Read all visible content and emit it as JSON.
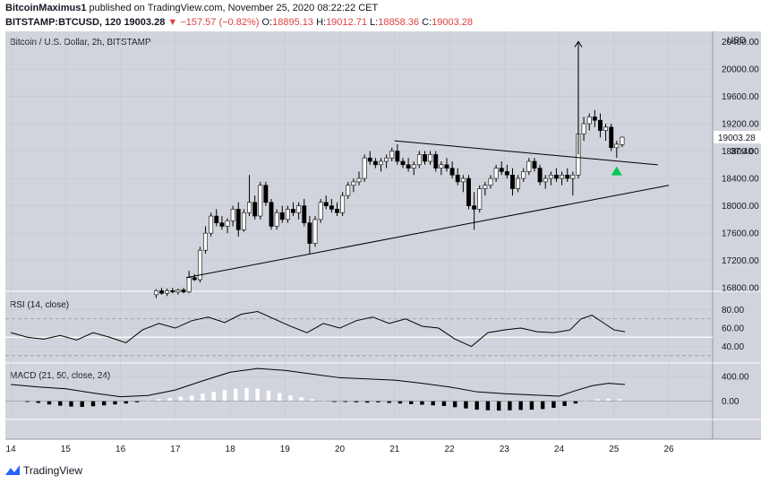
{
  "header": {
    "author": "BitcoinMaximus1",
    "published_text": "published on TradingView.com, November 25, 2020 08:22:22 CET",
    "symbol": "BITSTAMP:BTCUSD, 120",
    "last": "19003.28",
    "change": "−157.57 (−0.82%)",
    "o_label": "O:",
    "o": "18895.13",
    "h_label": "H:",
    "h": "19012.71",
    "l_label": "L:",
    "l": "18858.36",
    "c_label": "C:",
    "c": "19003.28"
  },
  "chart_title": "Bitcoin / U.S. Dollar, 2h, BITSTAMP",
  "currency": "USD",
  "price_tag": "19003.28",
  "countdown": "37:40",
  "rsi_label": "RSI (14, close)",
  "macd_label": "MACD (21, 50, close, 24)",
  "footer_brand": "TradingView",
  "colors": {
    "panel_bg": "#d1d4dc",
    "up": "#ffffff",
    "down": "#000000",
    "marker": "#00c853"
  },
  "chart_data": [
    {
      "type": "candlestick",
      "title": "Bitcoin / U.S. Dollar, 2h, BITSTAMP",
      "x_ticks": [
        "14",
        "15",
        "16",
        "17",
        "18",
        "19",
        "20",
        "21",
        "22",
        "23",
        "24",
        "25",
        "26"
      ],
      "y_ticks": [
        16800,
        17200,
        17600,
        18000,
        18400,
        18800,
        19200,
        19600,
        20000,
        20400
      ],
      "ylim": [
        16750,
        20550
      ],
      "xlim": [
        13.9,
        26.8
      ],
      "candles": [
        [
          16.65,
          16700,
          16780,
          16650,
          16760
        ],
        [
          16.75,
          16760,
          16800,
          16700,
          16720
        ],
        [
          16.85,
          16720,
          16790,
          16680,
          16760
        ],
        [
          16.95,
          16760,
          16800,
          16720,
          16740
        ],
        [
          17.05,
          16740,
          16790,
          16700,
          16770
        ],
        [
          17.15,
          16770,
          16800,
          16720,
          16740
        ],
        [
          17.25,
          16740,
          17050,
          16720,
          16950
        ],
        [
          17.35,
          16950,
          17000,
          16900,
          16920
        ],
        [
          17.45,
          16920,
          17400,
          16880,
          17350
        ],
        [
          17.55,
          17350,
          17700,
          17300,
          17600
        ],
        [
          17.65,
          17600,
          17900,
          17550,
          17850
        ],
        [
          17.75,
          17850,
          17950,
          17700,
          17750
        ],
        [
          17.85,
          17750,
          17850,
          17650,
          17700
        ],
        [
          17.95,
          17700,
          17820,
          17600,
          17780
        ],
        [
          18.05,
          17780,
          18000,
          17700,
          17950
        ],
        [
          18.15,
          17950,
          18050,
          17550,
          17650
        ],
        [
          18.25,
          17650,
          17950,
          17620,
          17900
        ],
        [
          18.35,
          17900,
          18450,
          17850,
          18050
        ],
        [
          18.45,
          18050,
          18150,
          17800,
          17850
        ],
        [
          18.55,
          17850,
          18350,
          17800,
          18300
        ],
        [
          18.65,
          18300,
          18350,
          18000,
          18050
        ],
        [
          18.75,
          18050,
          18100,
          17650,
          17700
        ],
        [
          18.85,
          17700,
          17950,
          17650,
          17900
        ],
        [
          18.95,
          17900,
          18000,
          17750,
          17800
        ],
        [
          19.05,
          17800,
          18000,
          17750,
          17950
        ],
        [
          19.15,
          17950,
          18050,
          17850,
          17900
        ],
        [
          19.25,
          17900,
          18050,
          17800,
          18000
        ],
        [
          19.35,
          18000,
          18100,
          17700,
          17750
        ],
        [
          19.45,
          17750,
          17850,
          17300,
          17450
        ],
        [
          19.55,
          17450,
          17850,
          17400,
          17800
        ],
        [
          19.65,
          17800,
          18100,
          17750,
          18050
        ],
        [
          19.75,
          18050,
          18150,
          17950,
          18000
        ],
        [
          19.85,
          18000,
          18100,
          17900,
          17950
        ],
        [
          19.95,
          17950,
          18050,
          17850,
          17900
        ],
        [
          20.05,
          17900,
          18200,
          17850,
          18150
        ],
        [
          20.15,
          18150,
          18350,
          18100,
          18300
        ],
        [
          20.25,
          18300,
          18400,
          18200,
          18350
        ],
        [
          20.35,
          18350,
          18500,
          18300,
          18400
        ],
        [
          20.45,
          18400,
          18750,
          18350,
          18700
        ],
        [
          20.55,
          18700,
          18800,
          18600,
          18650
        ],
        [
          20.65,
          18650,
          18700,
          18550,
          18600
        ],
        [
          20.75,
          18600,
          18700,
          18500,
          18650
        ],
        [
          20.85,
          18650,
          18750,
          18550,
          18700
        ],
        [
          20.95,
          18700,
          18850,
          18650,
          18800
        ],
        [
          21.05,
          18800,
          18900,
          18600,
          18650
        ],
        [
          21.15,
          18650,
          18700,
          18550,
          18600
        ],
        [
          21.25,
          18600,
          18700,
          18500,
          18550
        ],
        [
          21.35,
          18550,
          18650,
          18450,
          18600
        ],
        [
          21.45,
          18600,
          18800,
          18550,
          18750
        ],
        [
          21.55,
          18750,
          18800,
          18600,
          18650
        ],
        [
          21.65,
          18650,
          18800,
          18600,
          18750
        ],
        [
          21.75,
          18750,
          18800,
          18500,
          18550
        ],
        [
          21.85,
          18550,
          18650,
          18450,
          18600
        ],
        [
          21.95,
          18600,
          18700,
          18500,
          18550
        ],
        [
          22.05,
          18550,
          18650,
          18400,
          18450
        ],
        [
          22.15,
          18450,
          18550,
          18300,
          18350
        ],
        [
          22.25,
          18350,
          18450,
          18200,
          18400
        ],
        [
          22.35,
          18400,
          18450,
          17950,
          18000
        ],
        [
          22.45,
          18000,
          18200,
          17650,
          17950
        ],
        [
          22.55,
          17950,
          18300,
          17900,
          18250
        ],
        [
          22.65,
          18250,
          18350,
          18150,
          18300
        ],
        [
          22.75,
          18300,
          18450,
          18250,
          18400
        ],
        [
          22.85,
          18400,
          18600,
          18350,
          18550
        ],
        [
          22.95,
          18550,
          18650,
          18450,
          18500
        ],
        [
          23.05,
          18500,
          18600,
          18400,
          18450
        ],
        [
          23.15,
          18450,
          18550,
          18150,
          18250
        ],
        [
          23.25,
          18250,
          18450,
          18200,
          18400
        ],
        [
          23.35,
          18400,
          18550,
          18350,
          18500
        ],
        [
          23.45,
          18500,
          18700,
          18450,
          18650
        ],
        [
          23.55,
          18650,
          18700,
          18500,
          18550
        ],
        [
          23.65,
          18550,
          18600,
          18300,
          18350
        ],
        [
          23.75,
          18350,
          18450,
          18250,
          18400
        ],
        [
          23.85,
          18400,
          18500,
          18300,
          18450
        ],
        [
          23.95,
          18450,
          18550,
          18350,
          18400
        ],
        [
          24.05,
          18400,
          18500,
          18300,
          18450
        ],
        [
          24.15,
          18450,
          18550,
          18350,
          18400
        ],
        [
          24.25,
          18400,
          18500,
          18150,
          18450
        ],
        [
          24.35,
          18450,
          20300,
          18400,
          19050
        ],
        [
          24.45,
          19050,
          19300,
          18950,
          19200
        ],
        [
          24.55,
          19200,
          19350,
          19100,
          19300
        ],
        [
          24.65,
          19300,
          19400,
          19150,
          19250
        ],
        [
          24.75,
          19250,
          19350,
          19000,
          19100
        ],
        [
          24.85,
          19100,
          19200,
          18950,
          19150
        ],
        [
          24.95,
          19150,
          19200,
          18800,
          18850
        ],
        [
          25.05,
          18850,
          18950,
          18700,
          18900
        ],
        [
          25.15,
          18895,
          19013,
          18858,
          19003
        ]
      ],
      "trendlines": [
        {
          "name": "upper",
          "points": [
            [
              21.0,
              18950
            ],
            [
              25.8,
              18600
            ]
          ]
        },
        {
          "name": "lower",
          "points": [
            [
              17.2,
              16950
            ],
            [
              26.0,
              18300
            ]
          ]
        },
        {
          "name": "target-arrow",
          "points": [
            [
              24.35,
              18750
            ],
            [
              24.35,
              20400
            ]
          ]
        }
      ],
      "marker": {
        "type": "triangle-up",
        "x": 25.05,
        "y": 18510
      }
    },
    {
      "type": "line",
      "title": "RSI (14, close)",
      "y_ticks": [
        40.0,
        60.0,
        80.0
      ],
      "ylim": [
        22,
        100
      ],
      "levels": [
        70,
        50,
        30
      ],
      "x": [
        14.0,
        14.3,
        14.6,
        14.9,
        15.2,
        15.5,
        15.8,
        16.1,
        16.4,
        16.7,
        17.0,
        17.3,
        17.6,
        17.9,
        18.2,
        18.5,
        18.8,
        19.1,
        19.4,
        19.7,
        20.0,
        20.3,
        20.6,
        20.9,
        21.2,
        21.5,
        21.8,
        22.1,
        22.4,
        22.7,
        23.0,
        23.3,
        23.6,
        23.9,
        24.2,
        24.4,
        24.6,
        24.8,
        25.0,
        25.2
      ],
      "y": [
        55,
        50,
        48,
        52,
        47,
        55,
        50,
        44,
        58,
        65,
        60,
        68,
        72,
        66,
        75,
        78,
        70,
        62,
        55,
        65,
        60,
        68,
        72,
        65,
        70,
        62,
        60,
        48,
        40,
        55,
        58,
        60,
        56,
        55,
        58,
        70,
        74,
        66,
        58,
        56
      ]
    },
    {
      "type": "line",
      "title": "MACD (21, 50, close, 24)",
      "y_ticks": [
        0.0,
        400.0
      ],
      "ylim": [
        -300,
        620
      ],
      "x": [
        14.0,
        14.5,
        15.0,
        15.5,
        16.0,
        16.5,
        17.0,
        17.5,
        18.0,
        18.5,
        19.0,
        19.5,
        20.0,
        20.5,
        21.0,
        21.5,
        22.0,
        22.5,
        23.0,
        23.5,
        24.0,
        24.3,
        24.6,
        24.9,
        25.2
      ],
      "macd": [
        270,
        230,
        200,
        130,
        70,
        90,
        180,
        330,
        470,
        530,
        500,
        440,
        380,
        360,
        340,
        290,
        230,
        150,
        120,
        100,
        80,
        170,
        250,
        290,
        270
      ],
      "histogram": [
        [
          14.3,
          -10
        ],
        [
          14.5,
          -30
        ],
        [
          14.7,
          -55
        ],
        [
          14.9,
          -75
        ],
        [
          15.1,
          -90
        ],
        [
          15.3,
          -95
        ],
        [
          15.5,
          -85
        ],
        [
          15.7,
          -70
        ],
        [
          15.9,
          -55
        ],
        [
          16.1,
          -40
        ],
        [
          16.3,
          -20
        ],
        [
          16.5,
          10
        ],
        [
          16.7,
          30
        ],
        [
          16.9,
          50
        ],
        [
          17.1,
          70
        ],
        [
          17.3,
          90
        ],
        [
          17.5,
          120
        ],
        [
          17.7,
          150
        ],
        [
          17.9,
          180
        ],
        [
          18.1,
          200
        ],
        [
          18.3,
          210
        ],
        [
          18.5,
          200
        ],
        [
          18.7,
          170
        ],
        [
          18.9,
          130
        ],
        [
          19.1,
          90
        ],
        [
          19.3,
          60
        ],
        [
          19.5,
          30
        ],
        [
          19.7,
          10
        ],
        [
          19.9,
          -10
        ],
        [
          20.1,
          -15
        ],
        [
          20.3,
          -20
        ],
        [
          20.5,
          -25
        ],
        [
          20.7,
          -20
        ],
        [
          20.9,
          -30
        ],
        [
          21.1,
          -40
        ],
        [
          21.3,
          -50
        ],
        [
          21.5,
          -60
        ],
        [
          21.7,
          -70
        ],
        [
          21.9,
          -80
        ],
        [
          22.1,
          -100
        ],
        [
          22.3,
          -120
        ],
        [
          22.5,
          -140
        ],
        [
          22.7,
          -150
        ],
        [
          22.9,
          -155
        ],
        [
          23.1,
          -150
        ],
        [
          23.3,
          -145
        ],
        [
          23.5,
          -140
        ],
        [
          23.7,
          -130
        ],
        [
          23.9,
          -110
        ],
        [
          24.1,
          -80
        ],
        [
          24.3,
          -40
        ],
        [
          24.5,
          10
        ],
        [
          24.7,
          30
        ],
        [
          24.9,
          40
        ],
        [
          25.1,
          30
        ]
      ]
    }
  ]
}
